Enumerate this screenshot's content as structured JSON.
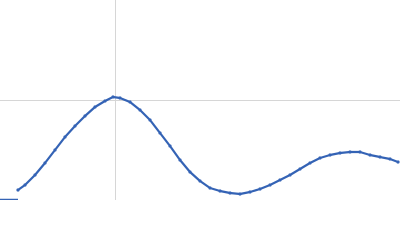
{
  "chart_data": {
    "type": "scatter",
    "x": [
      0.018,
      0.025,
      0.035,
      0.045,
      0.055,
      0.065,
      0.075,
      0.085,
      0.095,
      0.105,
      0.113,
      0.12,
      0.13,
      0.14,
      0.15,
      0.16,
      0.17,
      0.18,
      0.19,
      0.2,
      0.21,
      0.22,
      0.23,
      0.24,
      0.25,
      0.26,
      0.27,
      0.28,
      0.29,
      0.3,
      0.31,
      0.32,
      0.33,
      0.34,
      0.35,
      0.36,
      0.37,
      0.38,
      0.39,
      0.398
    ],
    "values": [
      0.1,
      0.15,
      0.25,
      0.37,
      0.5,
      0.63,
      0.74,
      0.84,
      0.93,
      0.99,
      1.03,
      1.02,
      0.98,
      0.9,
      0.8,
      0.67,
      0.54,
      0.4,
      0.28,
      0.19,
      0.12,
      0.09,
      0.07,
      0.06,
      0.08,
      0.11,
      0.15,
      0.2,
      0.25,
      0.31,
      0.37,
      0.42,
      0.45,
      0.47,
      0.48,
      0.48,
      0.45,
      0.43,
      0.41,
      0.38
    ],
    "color": "#3463b5",
    "xlim": [
      0,
      0.4
    ],
    "ylim": [
      0,
      2
    ],
    "xticks": [
      0.115
    ],
    "yticks": [
      1
    ],
    "grid": true
  }
}
